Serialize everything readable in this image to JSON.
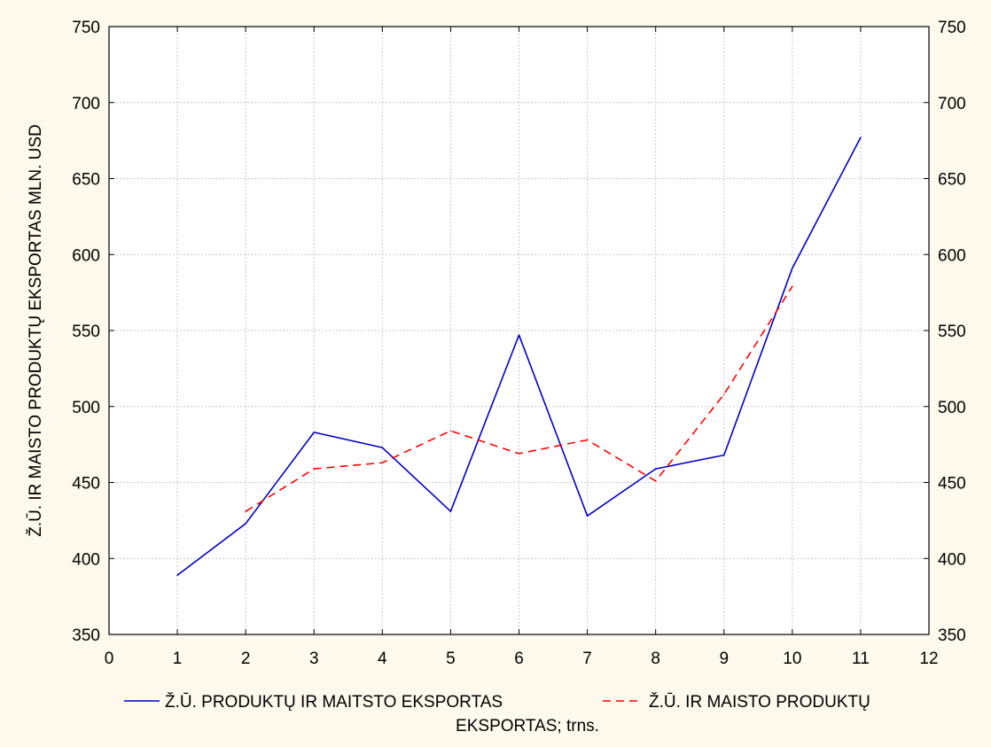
{
  "chart_data": {
    "type": "line",
    "title": "",
    "xlabel": "",
    "ylabel": "Ž.Ū. IR MAISTO PRODUKTŲ EKSPORTAS MLN. USD",
    "xlim": [
      0,
      12
    ],
    "ylim": [
      350,
      750
    ],
    "x_ticks": [
      "0",
      "1",
      "2",
      "3",
      "4",
      "5",
      "6",
      "7",
      "8",
      "9",
      "10",
      "11",
      "12"
    ],
    "y_ticks": [
      "350",
      "400",
      "450",
      "500",
      "550",
      "600",
      "650",
      "700",
      "750"
    ],
    "y_ticks_right": [
      "350",
      "400",
      "450",
      "500",
      "550",
      "600",
      "650",
      "700",
      "750"
    ],
    "grid": true,
    "legend_position": "bottom",
    "series": [
      {
        "name": "Ž.Ū. PRODUKTŲ IR MAITSTO EKSPORTAS",
        "color": "#0000cc",
        "style": "solid",
        "x": [
          1,
          2,
          3,
          4,
          5,
          6,
          7,
          8,
          9,
          10,
          11
        ],
        "values": [
          389,
          423,
          483,
          473,
          431,
          547,
          428,
          459,
          468,
          591,
          677
        ]
      },
      {
        "name": "Ž.Ū. IR MAISTO PRODUKTŲ EKSPORTAS; trns.",
        "color": "#ff0000",
        "style": "dashed",
        "x": [
          2,
          3,
          4,
          5,
          6,
          7,
          8,
          9,
          10
        ],
        "values": [
          431,
          459,
          463,
          484,
          469,
          478,
          451,
          508,
          579
        ]
      }
    ],
    "legend": {
      "entry1": "Ž.Ū. PRODUKTŲ IR MAITSTO EKSPORTAS",
      "entry2_line1": "Ž.Ū. IR MAISTO PRODUKTŲ",
      "entry2_line2": "EKSPORTAS; trns."
    }
  }
}
